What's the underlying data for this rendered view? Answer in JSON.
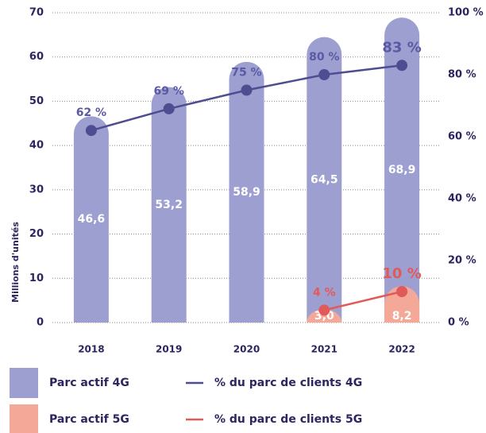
{
  "chart_data": {
    "type": "combo",
    "y_label": "Millions d'unités",
    "categories": [
      "2018",
      "2019",
      "2020",
      "2021",
      "2022"
    ],
    "ylim": [
      0,
      70
    ],
    "yticks": [
      0,
      10,
      20,
      30,
      40,
      50,
      60,
      70
    ],
    "y2lim": [
      0,
      100
    ],
    "y2ticks": [
      {
        "value": 0,
        "label": "0 %"
      },
      {
        "value": 20,
        "label": "20 %"
      },
      {
        "value": 40,
        "label": "40 %"
      },
      {
        "value": 60,
        "label": "60 %"
      },
      {
        "value": 80,
        "label": "80 %"
      },
      {
        "value": 100,
        "label": "100 %"
      }
    ],
    "grid": true,
    "series": [
      {
        "name": "Parc actif 4G",
        "type": "bar",
        "color": "#9d9fd1",
        "label_color": "#ffffff",
        "values": [
          46.6,
          53.2,
          58.9,
          64.5,
          68.9
        ],
        "value_labels": [
          "46,6",
          "53,2",
          "58,9",
          "64,5",
          "68,9"
        ]
      },
      {
        "name": "Parc actif 5G",
        "type": "bar",
        "color": "#f4a898",
        "label_color": "#ffffff",
        "values": [
          null,
          null,
          null,
          3.0,
          8.2
        ],
        "value_labels": [
          null,
          null,
          null,
          "3,0",
          "8,2"
        ]
      },
      {
        "name": "% du parc de clients 4G",
        "type": "line",
        "axis": "y2",
        "color": "#4f4d91",
        "label_color": "#5b59a3",
        "values": [
          62,
          69,
          75,
          80,
          83
        ],
        "value_labels": [
          "62 %",
          "69 %",
          "75 %",
          "80 %",
          "83 %"
        ]
      },
      {
        "name": "% du parc de clients 5G",
        "type": "line",
        "axis": "y2",
        "color": "#e05a5a",
        "label_color": "#e05a5a",
        "values": [
          null,
          null,
          null,
          4,
          10
        ],
        "value_labels": [
          null,
          null,
          null,
          "4 %",
          "10 %"
        ]
      }
    ]
  }
}
